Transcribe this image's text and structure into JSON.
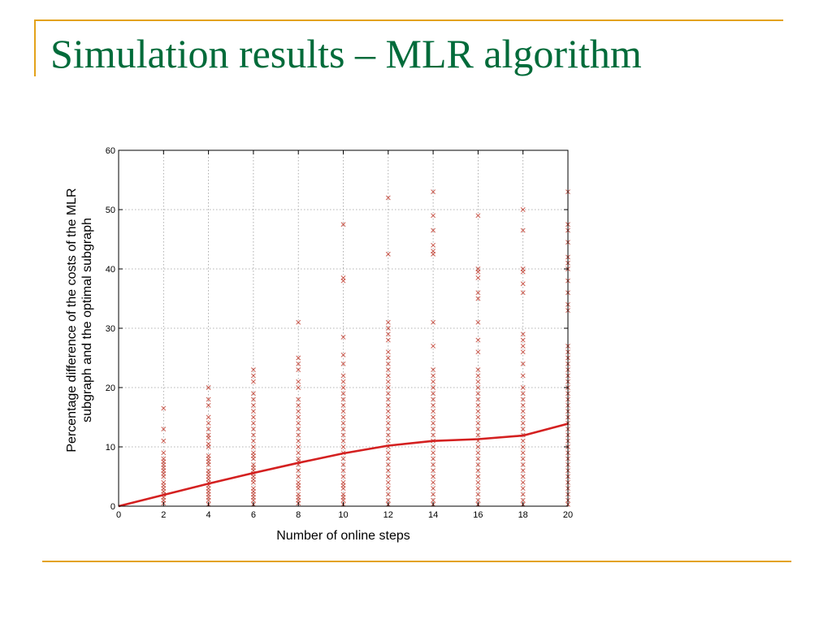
{
  "slide": {
    "title": "Simulation results – MLR algorithm",
    "accent_color": "#e3a21a",
    "title_color": "#006b3a"
  },
  "chart_data": {
    "type": "scatter",
    "xlabel": "Number of online steps",
    "ylabel_lines": [
      "Percentage difference of the costs of the MLR",
      "subgraph and the optimal subgraph"
    ],
    "xlim": [
      0,
      20
    ],
    "ylim": [
      0,
      60
    ],
    "xticks": [
      0,
      2,
      4,
      6,
      8,
      10,
      12,
      14,
      16,
      18,
      20
    ],
    "yticks": [
      0,
      10,
      20,
      30,
      40,
      50,
      60
    ],
    "grid": true,
    "marker_color": "#c0392b",
    "line_color": "#d42020",
    "series": [
      {
        "kind": "scatter",
        "points": [
          [
            2,
            0.5
          ],
          [
            2,
            1
          ],
          [
            2,
            1.5
          ],
          [
            2,
            2
          ],
          [
            2,
            2.5
          ],
          [
            2,
            3
          ],
          [
            2,
            3.5
          ],
          [
            2,
            4
          ],
          [
            2,
            5
          ],
          [
            2,
            5.5
          ],
          [
            2,
            6
          ],
          [
            2,
            6.5
          ],
          [
            2,
            7
          ],
          [
            2,
            7.5
          ],
          [
            2,
            8
          ],
          [
            2,
            9
          ],
          [
            2,
            11
          ],
          [
            2,
            13
          ],
          [
            2,
            16.5
          ],
          [
            4,
            0.3
          ],
          [
            4,
            1
          ],
          [
            4,
            1.5
          ],
          [
            4,
            2
          ],
          [
            4,
            2.5
          ],
          [
            4,
            3
          ],
          [
            4,
            3.5
          ],
          [
            4,
            4
          ],
          [
            4,
            4.5
          ],
          [
            4,
            5
          ],
          [
            4,
            5.5
          ],
          [
            4,
            6
          ],
          [
            4,
            7
          ],
          [
            4,
            7.5
          ],
          [
            4,
            8
          ],
          [
            4,
            8.5
          ],
          [
            4,
            10
          ],
          [
            4,
            10.5
          ],
          [
            4,
            11.5
          ],
          [
            4,
            12
          ],
          [
            4,
            13
          ],
          [
            4,
            14
          ],
          [
            4,
            15
          ],
          [
            4,
            17
          ],
          [
            4,
            18
          ],
          [
            4,
            20
          ],
          [
            6,
            0.3
          ],
          [
            6,
            1
          ],
          [
            6,
            1.5
          ],
          [
            6,
            2
          ],
          [
            6,
            2.5
          ],
          [
            6,
            3
          ],
          [
            6,
            4
          ],
          [
            6,
            4.5
          ],
          [
            6,
            5
          ],
          [
            6,
            5.5
          ],
          [
            6,
            6
          ],
          [
            6,
            6.5
          ],
          [
            6,
            7
          ],
          [
            6,
            8
          ],
          [
            6,
            8.5
          ],
          [
            6,
            9
          ],
          [
            6,
            10
          ],
          [
            6,
            11
          ],
          [
            6,
            12
          ],
          [
            6,
            13
          ],
          [
            6,
            14
          ],
          [
            6,
            15
          ],
          [
            6,
            16
          ],
          [
            6,
            17
          ],
          [
            6,
            18
          ],
          [
            6,
            19
          ],
          [
            6,
            21
          ],
          [
            6,
            22
          ],
          [
            6,
            23
          ],
          [
            8,
            0.5
          ],
          [
            8,
            1
          ],
          [
            8,
            1.5
          ],
          [
            8,
            2
          ],
          [
            8,
            3
          ],
          [
            8,
            3.5
          ],
          [
            8,
            4
          ],
          [
            8,
            5
          ],
          [
            8,
            6
          ],
          [
            8,
            7
          ],
          [
            8,
            7.5
          ],
          [
            8,
            8
          ],
          [
            8,
            9
          ],
          [
            8,
            10
          ],
          [
            8,
            11
          ],
          [
            8,
            12
          ],
          [
            8,
            13
          ],
          [
            8,
            14
          ],
          [
            8,
            15
          ],
          [
            8,
            16
          ],
          [
            8,
            17
          ],
          [
            8,
            18
          ],
          [
            8,
            20
          ],
          [
            8,
            21
          ],
          [
            8,
            23
          ],
          [
            8,
            24
          ],
          [
            8,
            25
          ],
          [
            8,
            31
          ],
          [
            10,
            0.3
          ],
          [
            10,
            1
          ],
          [
            10,
            1.5
          ],
          [
            10,
            2
          ],
          [
            10,
            3
          ],
          [
            10,
            3.5
          ],
          [
            10,
            4
          ],
          [
            10,
            5
          ],
          [
            10,
            6
          ],
          [
            10,
            7
          ],
          [
            10,
            8
          ],
          [
            10,
            9
          ],
          [
            10,
            10
          ],
          [
            10,
            11
          ],
          [
            10,
            12
          ],
          [
            10,
            13
          ],
          [
            10,
            14
          ],
          [
            10,
            15
          ],
          [
            10,
            16
          ],
          [
            10,
            17
          ],
          [
            10,
            18
          ],
          [
            10,
            19
          ],
          [
            10,
            20
          ],
          [
            10,
            21
          ],
          [
            10,
            22
          ],
          [
            10,
            24
          ],
          [
            10,
            25.5
          ],
          [
            10,
            28.5
          ],
          [
            10,
            38
          ],
          [
            10,
            38.5
          ],
          [
            10,
            47.5
          ],
          [
            12,
            0.3
          ],
          [
            12,
            1
          ],
          [
            12,
            2
          ],
          [
            12,
            3
          ],
          [
            12,
            4
          ],
          [
            12,
            5
          ],
          [
            12,
            6
          ],
          [
            12,
            7
          ],
          [
            12,
            8
          ],
          [
            12,
            9
          ],
          [
            12,
            10
          ],
          [
            12,
            11
          ],
          [
            12,
            12
          ],
          [
            12,
            13
          ],
          [
            12,
            14
          ],
          [
            12,
            15
          ],
          [
            12,
            16
          ],
          [
            12,
            17
          ],
          [
            12,
            18
          ],
          [
            12,
            19
          ],
          [
            12,
            20
          ],
          [
            12,
            21
          ],
          [
            12,
            22
          ],
          [
            12,
            23
          ],
          [
            12,
            24
          ],
          [
            12,
            25
          ],
          [
            12,
            26
          ],
          [
            12,
            28
          ],
          [
            12,
            29
          ],
          [
            12,
            30
          ],
          [
            12,
            31
          ],
          [
            12,
            42.5
          ],
          [
            12,
            52
          ],
          [
            14,
            0.3
          ],
          [
            14,
            1
          ],
          [
            14,
            2
          ],
          [
            14,
            3
          ],
          [
            14,
            4
          ],
          [
            14,
            5
          ],
          [
            14,
            6
          ],
          [
            14,
            7
          ],
          [
            14,
            8
          ],
          [
            14,
            9
          ],
          [
            14,
            10
          ],
          [
            14,
            11
          ],
          [
            14,
            12
          ],
          [
            14,
            13
          ],
          [
            14,
            14
          ],
          [
            14,
            15
          ],
          [
            14,
            16
          ],
          [
            14,
            17
          ],
          [
            14,
            18
          ],
          [
            14,
            19
          ],
          [
            14,
            20
          ],
          [
            14,
            21
          ],
          [
            14,
            22
          ],
          [
            14,
            23
          ],
          [
            14,
            27
          ],
          [
            14,
            31
          ],
          [
            14,
            42.5
          ],
          [
            14,
            43
          ],
          [
            14,
            44
          ],
          [
            14,
            46.5
          ],
          [
            14,
            49
          ],
          [
            14,
            53
          ],
          [
            16,
            0.3
          ],
          [
            16,
            1
          ],
          [
            16,
            2
          ],
          [
            16,
            3
          ],
          [
            16,
            4
          ],
          [
            16,
            5
          ],
          [
            16,
            6
          ],
          [
            16,
            7
          ],
          [
            16,
            8
          ],
          [
            16,
            9
          ],
          [
            16,
            10
          ],
          [
            16,
            11
          ],
          [
            16,
            12
          ],
          [
            16,
            13
          ],
          [
            16,
            14
          ],
          [
            16,
            15
          ],
          [
            16,
            16
          ],
          [
            16,
            17
          ],
          [
            16,
            18
          ],
          [
            16,
            19
          ],
          [
            16,
            20
          ],
          [
            16,
            21
          ],
          [
            16,
            22
          ],
          [
            16,
            23
          ],
          [
            16,
            26
          ],
          [
            16,
            28
          ],
          [
            16,
            31
          ],
          [
            16,
            35
          ],
          [
            16,
            36
          ],
          [
            16,
            38.5
          ],
          [
            16,
            39.5
          ],
          [
            16,
            40
          ],
          [
            16,
            49
          ],
          [
            18,
            0.3
          ],
          [
            18,
            1
          ],
          [
            18,
            2
          ],
          [
            18,
            3
          ],
          [
            18,
            4
          ],
          [
            18,
            5
          ],
          [
            18,
            6
          ],
          [
            18,
            7
          ],
          [
            18,
            8
          ],
          [
            18,
            9
          ],
          [
            18,
            10
          ],
          [
            18,
            11
          ],
          [
            18,
            12
          ],
          [
            18,
            13
          ],
          [
            18,
            14
          ],
          [
            18,
            15
          ],
          [
            18,
            16
          ],
          [
            18,
            17
          ],
          [
            18,
            18
          ],
          [
            18,
            19
          ],
          [
            18,
            20
          ],
          [
            18,
            22
          ],
          [
            18,
            24
          ],
          [
            18,
            26
          ],
          [
            18,
            27
          ],
          [
            18,
            28
          ],
          [
            18,
            29
          ],
          [
            18,
            36
          ],
          [
            18,
            37.5
          ],
          [
            18,
            39.5
          ],
          [
            18,
            40
          ],
          [
            18,
            46.5
          ],
          [
            18,
            50
          ],
          [
            20,
            0.3
          ],
          [
            20,
            1
          ],
          [
            20,
            2
          ],
          [
            20,
            3
          ],
          [
            20,
            4
          ],
          [
            20,
            5
          ],
          [
            20,
            6
          ],
          [
            20,
            7
          ],
          [
            20,
            8
          ],
          [
            20,
            9
          ],
          [
            20,
            10
          ],
          [
            20,
            11
          ],
          [
            20,
            12
          ],
          [
            20,
            13
          ],
          [
            20,
            14
          ],
          [
            20,
            15
          ],
          [
            20,
            16
          ],
          [
            20,
            17
          ],
          [
            20,
            18
          ],
          [
            20,
            19
          ],
          [
            20,
            20
          ],
          [
            20,
            21
          ],
          [
            20,
            22
          ],
          [
            20,
            23
          ],
          [
            20,
            24
          ],
          [
            20,
            25
          ],
          [
            20,
            26
          ],
          [
            20,
            27
          ],
          [
            20,
            33
          ],
          [
            20,
            34
          ],
          [
            20,
            36
          ],
          [
            20,
            38
          ],
          [
            20,
            40
          ],
          [
            20,
            41
          ],
          [
            20,
            42
          ],
          [
            20,
            44.5
          ],
          [
            20,
            46.5
          ],
          [
            20,
            47.5
          ],
          [
            20,
            53
          ]
        ]
      },
      {
        "kind": "line",
        "x": [
          0,
          2,
          4,
          6,
          8,
          10,
          12,
          14,
          16,
          18,
          20
        ],
        "values": [
          0,
          1.9,
          3.8,
          5.6,
          7.3,
          8.9,
          10.2,
          11.0,
          11.3,
          11.9,
          13.9
        ]
      }
    ]
  }
}
